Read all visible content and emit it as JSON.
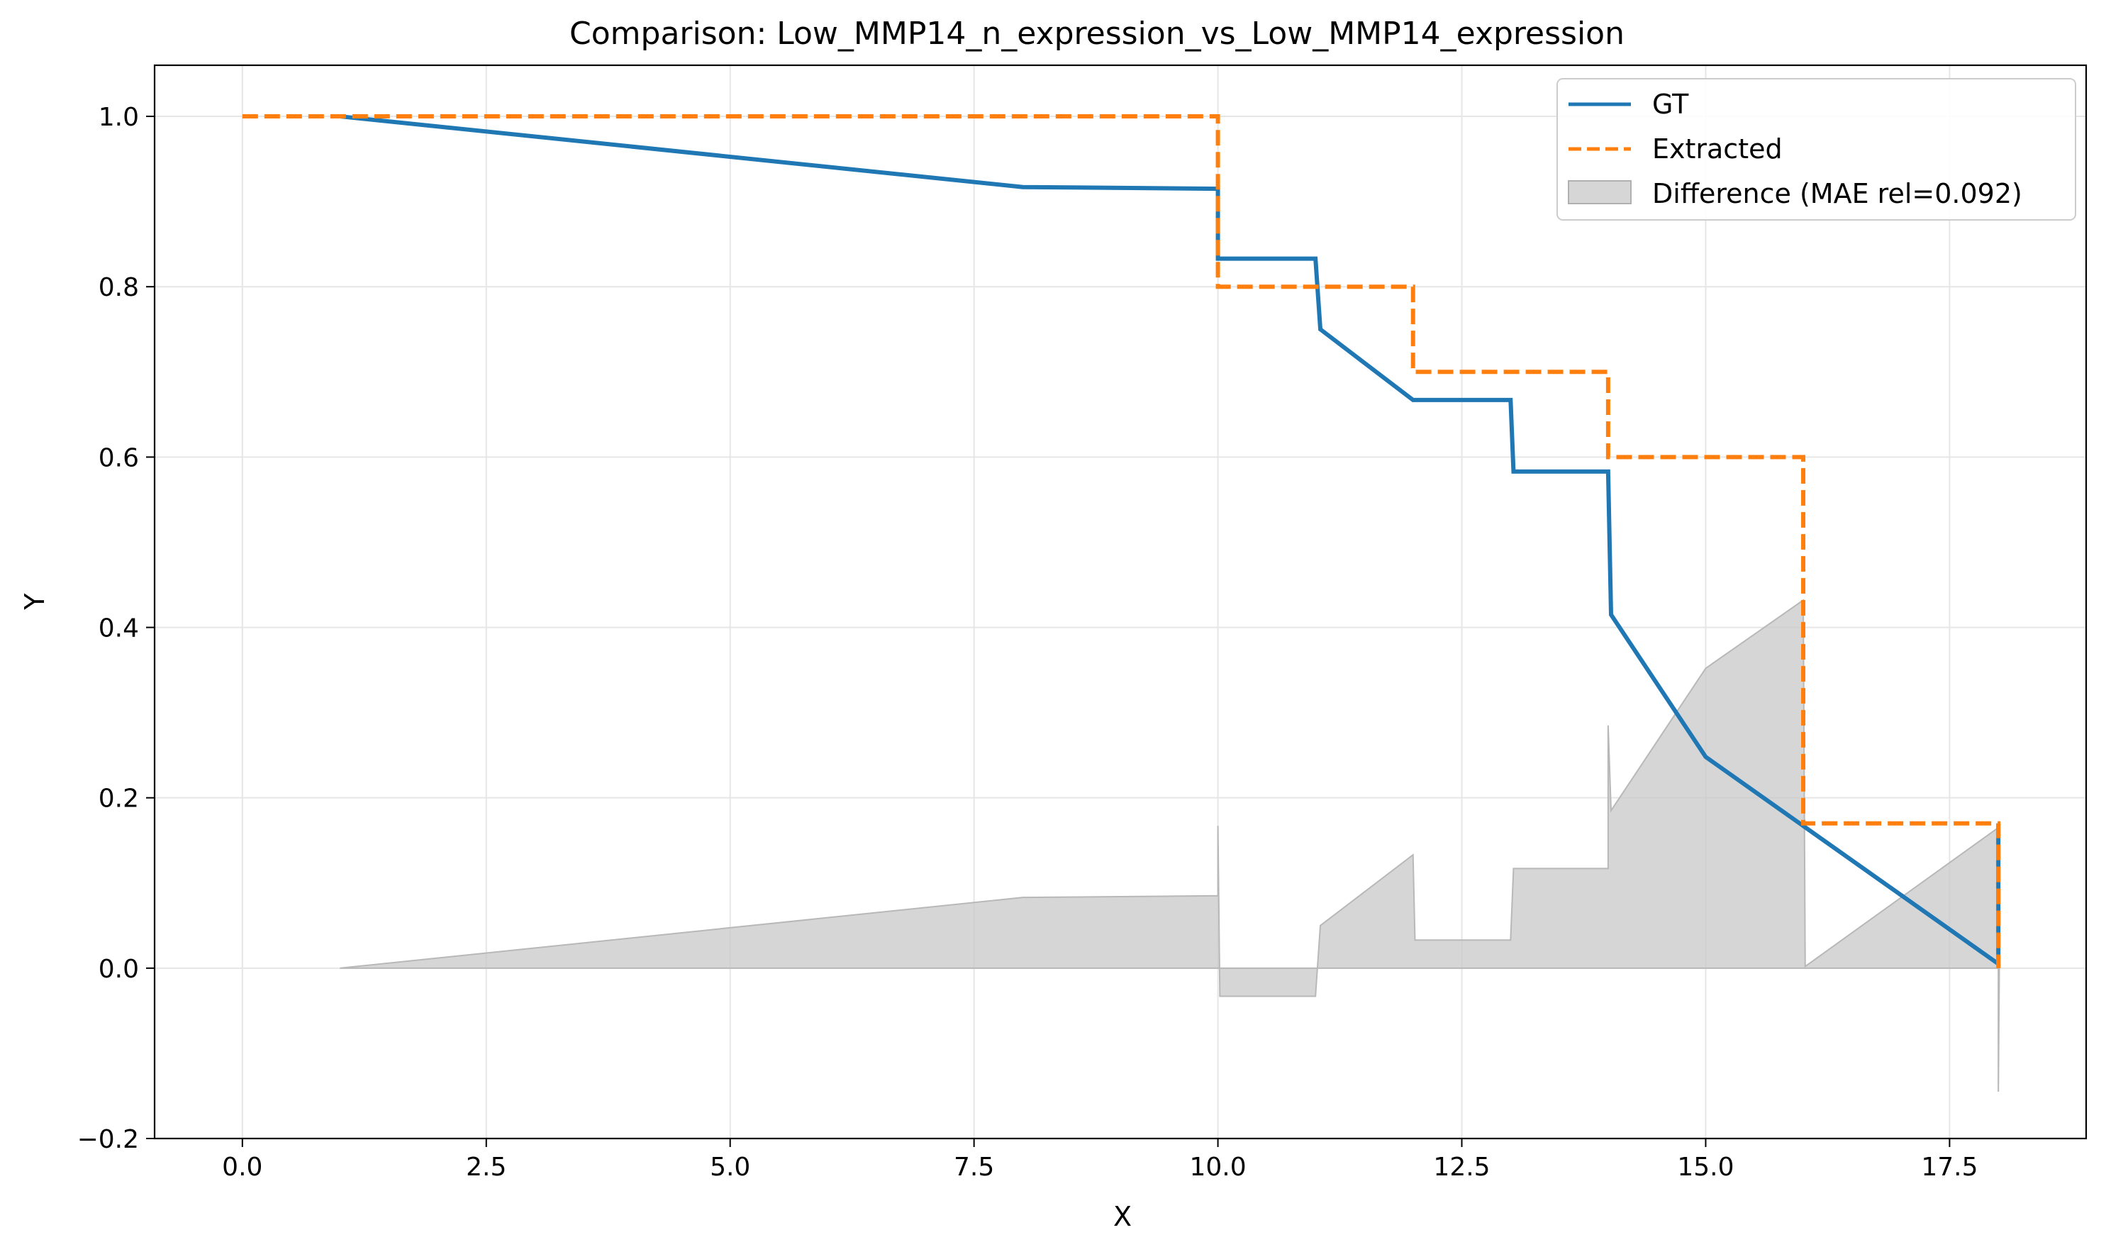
{
  "chart_data": {
    "type": "line",
    "title": "Comparison: Low_MMP14_n_expression_vs_Low_MMP14_expression",
    "xlabel": "X",
    "ylabel": "Y",
    "xlim": [
      -0.9,
      18.9
    ],
    "ylim": [
      -0.2,
      1.06
    ],
    "grid": true,
    "legend_position": "top-right",
    "x_ticks": [
      0.0,
      2.5,
      5.0,
      7.5,
      10.0,
      12.5,
      15.0,
      17.5
    ],
    "x_tick_labels": [
      "0.0",
      "2.5",
      "5.0",
      "7.5",
      "10.0",
      "12.5",
      "15.0",
      "17.5"
    ],
    "y_ticks": [
      -0.2,
      0.0,
      0.2,
      0.4,
      0.6,
      0.8,
      1.0
    ],
    "y_tick_labels": [
      "−0.2",
      "0.0",
      "0.2",
      "0.4",
      "0.6",
      "0.8",
      "1.0"
    ],
    "series": [
      {
        "name": "GT",
        "style": "solid",
        "color": "#1f77b4",
        "points": [
          [
            1,
            1.0
          ],
          [
            8,
            0.917
          ],
          [
            10,
            0.915
          ],
          [
            10,
            0.833
          ],
          [
            11,
            0.833
          ],
          [
            11.05,
            0.75
          ],
          [
            12,
            0.667
          ],
          [
            13,
            0.667
          ],
          [
            13.03,
            0.583
          ],
          [
            14,
            0.583
          ],
          [
            14.03,
            0.415
          ],
          [
            15,
            0.248
          ],
          [
            18,
            0.005
          ],
          [
            18,
            0.17
          ]
        ]
      },
      {
        "name": "Extracted",
        "style": "dashed",
        "color": "#ff7f0e",
        "points": [
          [
            0,
            1.0
          ],
          [
            10,
            1.0
          ],
          [
            10,
            0.8
          ],
          [
            12,
            0.8
          ],
          [
            12,
            0.7
          ],
          [
            14,
            0.7
          ],
          [
            14,
            0.6
          ],
          [
            16,
            0.6
          ],
          [
            16,
            0.17
          ],
          [
            18,
            0.17
          ],
          [
            18,
            0.0
          ]
        ]
      }
    ],
    "difference": {
      "name": "Difference (MAE rel=0.092)",
      "color": "#c8c8c8",
      "points": [
        [
          1,
          0.0
        ],
        [
          8,
          0.083
        ],
        [
          10,
          0.085
        ],
        [
          10,
          0.167
        ],
        [
          10.02,
          -0.033
        ],
        [
          11,
          -0.033
        ],
        [
          11.05,
          0.05
        ],
        [
          12,
          0.133
        ],
        [
          12.02,
          0.033
        ],
        [
          13,
          0.033
        ],
        [
          13.03,
          0.117
        ],
        [
          14,
          0.117
        ],
        [
          14,
          0.285
        ],
        [
          14.03,
          0.185
        ],
        [
          15,
          0.352
        ],
        [
          16,
          0.432
        ],
        [
          16.02,
          0.002
        ],
        [
          18,
          0.165
        ],
        [
          18,
          -0.145
        ],
        [
          18.01,
          0.0
        ]
      ]
    }
  }
}
